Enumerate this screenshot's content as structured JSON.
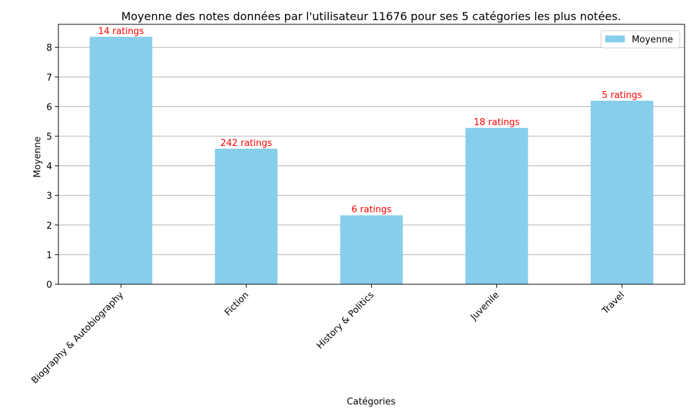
{
  "chart_data": {
    "type": "bar",
    "title": "Moyenne des notes données par l'utilisateur 11676 pour ses 5 catégories les plus notées.",
    "xlabel": "Catégories",
    "ylabel": "Moyenne",
    "categories": [
      "Biography & Autobiography",
      "Fiction",
      "History & Politics",
      "Juvenile",
      "Travel"
    ],
    "series": [
      {
        "name": "Moyenne",
        "values": [
          8.36,
          4.58,
          2.33,
          5.28,
          6.2
        ],
        "color": "#87CEEB"
      }
    ],
    "data_labels": [
      "14 ratings",
      "242 ratings",
      "6 ratings",
      "18 ratings",
      "5 ratings"
    ],
    "data_label_color": "#FF0000",
    "ylim": [
      0,
      8.78
    ],
    "yticks": [
      0,
      1,
      2,
      3,
      4,
      5,
      6,
      7,
      8
    ],
    "grid": "y-axis",
    "grid_color": "#b0b0b0",
    "legend_position": "top-right"
  }
}
